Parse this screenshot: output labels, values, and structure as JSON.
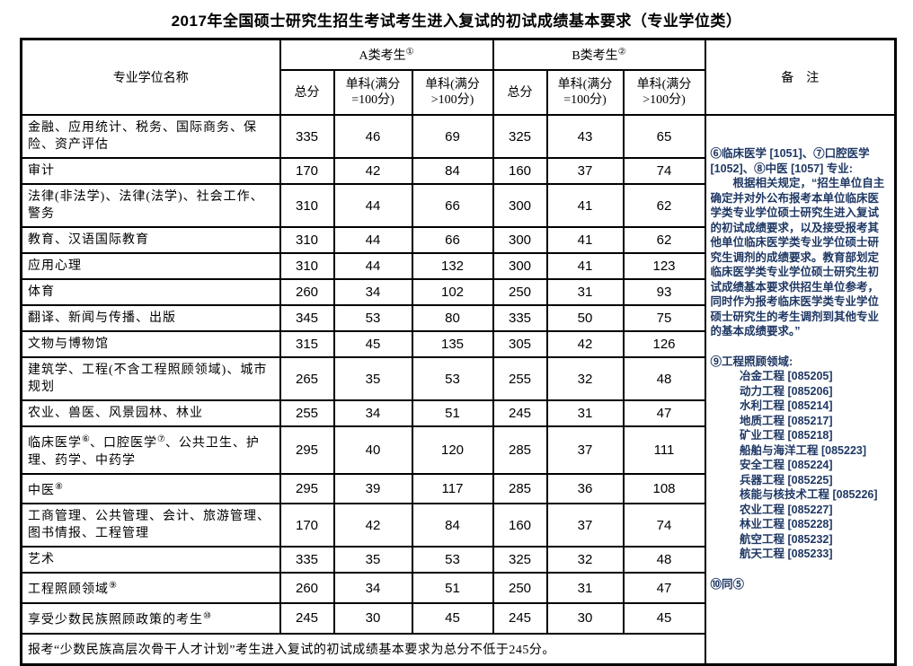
{
  "page": {
    "title": "2017年全国硕士研究生招生考试考生进入复试的初试成绩基本要求（专业学位类）"
  },
  "table": {
    "header": {
      "col_name": "专业学位名称",
      "group_a": {
        "label": "A类考生",
        "sup": "①"
      },
      "group_b": {
        "label": "B类考生",
        "sup": "②"
      },
      "sub_total": "总分",
      "sub_eq100": "单科(满分=100分)",
      "sub_gt100": "单科(满分>100分)",
      "remark": "备　注"
    },
    "rows": [
      {
        "name": "金融、应用统计、税务、国际商务、保险、资产评估",
        "a": [
          "335",
          "46",
          "69"
        ],
        "b": [
          "325",
          "43",
          "65"
        ]
      },
      {
        "name": "审计",
        "a": [
          "170",
          "42",
          "84"
        ],
        "b": [
          "160",
          "37",
          "74"
        ]
      },
      {
        "name": "法律(非法学)、法律(法学)、社会工作、警务",
        "a": [
          "310",
          "44",
          "66"
        ],
        "b": [
          "300",
          "41",
          "62"
        ]
      },
      {
        "name": "教育、汉语国际教育",
        "a": [
          "310",
          "44",
          "66"
        ],
        "b": [
          "300",
          "41",
          "62"
        ]
      },
      {
        "name": "应用心理",
        "a": [
          "310",
          "44",
          "132"
        ],
        "b": [
          "300",
          "41",
          "123"
        ]
      },
      {
        "name": "体育",
        "a": [
          "260",
          "34",
          "102"
        ],
        "b": [
          "250",
          "31",
          "93"
        ]
      },
      {
        "name": "翻译、新闻与传播、出版",
        "a": [
          "345",
          "53",
          "80"
        ],
        "b": [
          "335",
          "50",
          "75"
        ]
      },
      {
        "name": "文物与博物馆",
        "a": [
          "315",
          "45",
          "135"
        ],
        "b": [
          "305",
          "42",
          "126"
        ]
      },
      {
        "name": "建筑学、工程(不含工程照顾领域)、城市规划",
        "a": [
          "265",
          "35",
          "53"
        ],
        "b": [
          "255",
          "32",
          "48"
        ]
      },
      {
        "name": "农业、兽医、风景园林、林业",
        "a": [
          "255",
          "34",
          "51"
        ],
        "b": [
          "245",
          "31",
          "47"
        ]
      },
      {
        "name": "临床医学{⑥}、口腔医学{⑦}、公共卫生、护理、药学、中药学",
        "a": [
          "295",
          "40",
          "120"
        ],
        "b": [
          "285",
          "37",
          "111"
        ]
      },
      {
        "name": "中医{⑧}",
        "a": [
          "295",
          "39",
          "117"
        ],
        "b": [
          "285",
          "36",
          "108"
        ]
      },
      {
        "name": "工商管理、公共管理、会计、旅游管理、图书情报、工程管理",
        "a": [
          "170",
          "42",
          "84"
        ],
        "b": [
          "160",
          "37",
          "74"
        ]
      },
      {
        "name": "艺术",
        "a": [
          "335",
          "35",
          "53"
        ],
        "b": [
          "325",
          "32",
          "48"
        ]
      },
      {
        "name": "工程照顾领域{⑨}",
        "a": [
          "260",
          "34",
          "51"
        ],
        "b": [
          "250",
          "31",
          "47"
        ]
      },
      {
        "name": "享受少数民族照顾政策的考生{⑩}",
        "a": [
          "245",
          "30",
          "45"
        ],
        "b": [
          "245",
          "30",
          "45"
        ]
      }
    ],
    "footer_note": "报考“少数民族高层次骨干人才计划”考生进入复试的初试成绩基本要求为总分不低于245分。"
  },
  "remarks": {
    "text_color": "#1F3864",
    "note_medical_title": "⑥临床医学 [1051]、⑦口腔医学 [1052]、⑧中医 [1057] 专业:",
    "note_medical_body": "根据相关规定，“招生单位自主确定并对外公布报考本单位临床医学类专业学位硕士研究生进入复试的初试成绩要求，以及接受报考其他单位临床医学类专业学位硕士研究生调剂的成绩要求。教育部划定临床医学类专业学位硕士研究生初试成绩基本要求供招生单位参考，同时作为报考临床医学类专业学位硕士研究生的考生调剂到其他专业的基本成绩要求。”",
    "note_engineering_title": "⑨工程照顾领域:",
    "note_engineering_items": [
      "冶金工程 [085205]",
      "动力工程 [085206]",
      "水利工程 [085214]",
      "地质工程 [085217]",
      "矿业工程 [085218]",
      "船舶与海洋工程 [085223]",
      "安全工程 [085224]",
      "兵器工程 [085225]",
      "核能与核技术工程 [085226]",
      "农业工程 [085227]",
      "林业工程 [085228]",
      "航空工程 [085232]",
      "航天工程 [085233]"
    ],
    "note_minority": "⑩同⑤"
  }
}
